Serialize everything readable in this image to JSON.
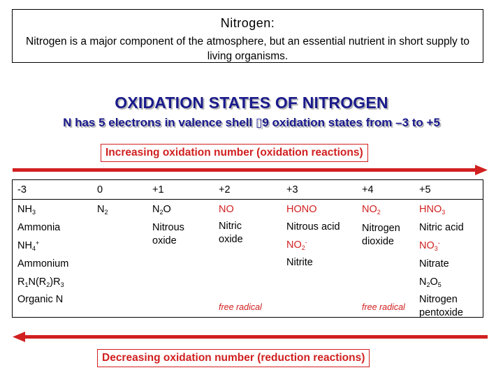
{
  "top_box": {
    "title": "Nitrogen:",
    "text": "Nitrogen is a major component of the atmosphere, but an essential nutrient in short supply to living organisms."
  },
  "heading": "OXIDATION STATES OF NITROGEN",
  "subheading": "N has 5 electrons in valence shell ▯9 oxidation states from –3 to +5",
  "increasing_label": "Increasing oxidation number (oxidation reactions)",
  "decreasing_label": "Decreasing oxidation number (reduction reactions)",
  "colors": {
    "accent_red": "#d12020",
    "heading_blue": "#1a1a8c"
  },
  "table": {
    "headers": [
      "-3",
      "0",
      "+1",
      "+2",
      "+3",
      "+4",
      "+5"
    ],
    "minus3": {
      "nh3_base": "NH",
      "nh3_sub": "3",
      "ammonia": "Ammonia",
      "nh4_base": "NH",
      "nh4_sub": "4",
      "nh4_sup": "+",
      "ammonium": "Ammonium",
      "r1n_a": "R",
      "r1n_s1": "1",
      "r1n_b": "N(R",
      "r1n_s2": "2",
      "r1n_c": ")R",
      "r1n_s3": "3",
      "organic": "Organic N"
    },
    "zero": {
      "n2_base": "N",
      "n2_sub": "2"
    },
    "plus1": {
      "n2o_a": "N",
      "n2o_sub": "2",
      "n2o_b": "O",
      "name": "Nitrous oxide"
    },
    "plus2": {
      "formula": "NO",
      "name": "Nitric oxide",
      "note": "free radical"
    },
    "plus3": {
      "formula": "HONO",
      "name": "Nitrous acid",
      "no2_base": "NO",
      "no2_sub": "2",
      "no2_sup": "-",
      "nitrite": "Nitrite"
    },
    "plus4": {
      "no2_base": "NO",
      "no2_sub": "2",
      "name": "Nitrogen dioxide",
      "note": "free radical"
    },
    "plus5": {
      "hno3_base": "HNO",
      "hno3_sub": "3",
      "name": "Nitric acid",
      "no3_base": "NO",
      "no3_sub": "3",
      "no3_sup": "-",
      "nitrate": "Nitrate",
      "n2o5_a": "N",
      "n2o5_s1": "2",
      "n2o5_b": "O",
      "n2o5_s2": "5",
      "pentoxide": "Nitrogen pentoxide"
    }
  }
}
